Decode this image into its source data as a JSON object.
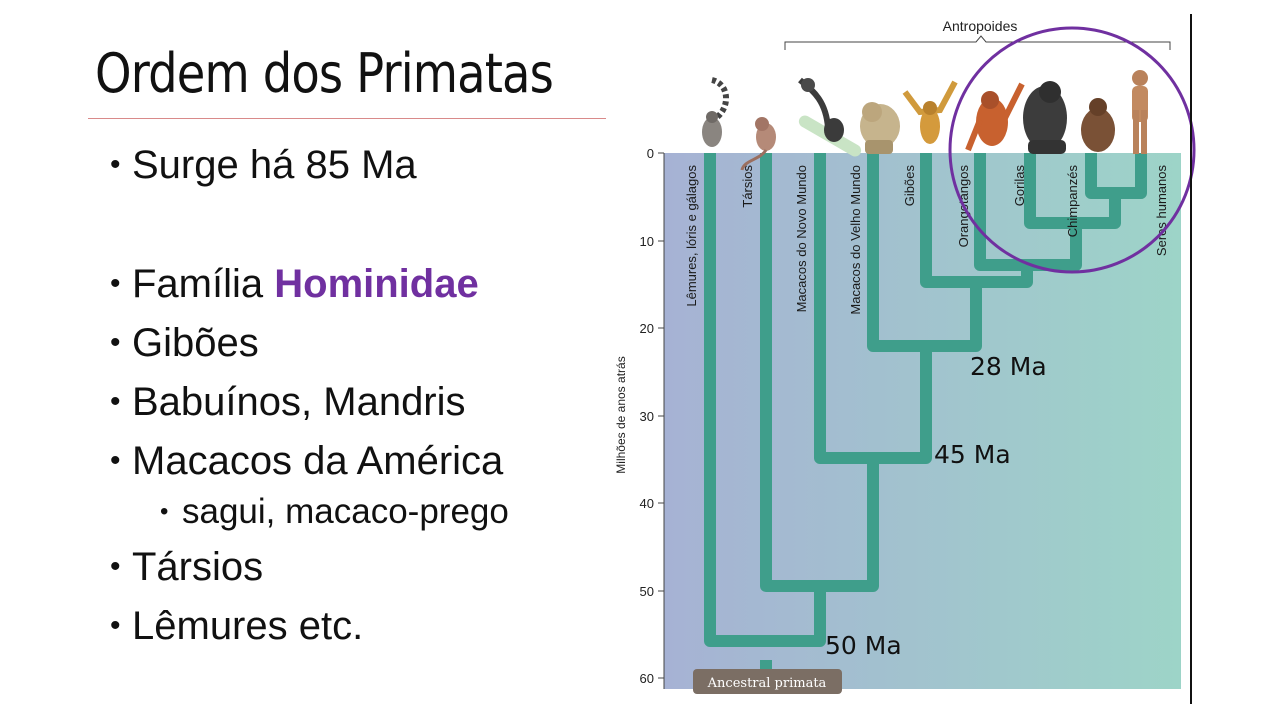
{
  "slide": {
    "title": "Ordem dos Primatas",
    "bullets": [
      {
        "text": "Surge há 85 Ma"
      },
      {
        "text": "Família ",
        "highlight": "Hominidae"
      },
      {
        "text": "Gibões"
      },
      {
        "text": "Babuínos, Mandris"
      },
      {
        "text": "Macacos da América"
      },
      {
        "text": "sagui, macaco-prego",
        "sub": true
      },
      {
        "text": "Társios"
      },
      {
        "text": "Lêmures etc."
      }
    ]
  },
  "diagram": {
    "group_label": "Antropoides",
    "axis_label": "Milhões de anos atrás",
    "axis_ticks": [
      "0",
      "10",
      "20",
      "30",
      "40",
      "50",
      "60"
    ],
    "taxa": [
      "Lêmures, lóris e gálagos",
      "Társios",
      "Macacos do Novo Mundo",
      "Macacos do Velho Mundo",
      "Gibões",
      "Orangotangos",
      "Gorilas",
      "Chimpanzés",
      "Seres humanos"
    ],
    "annotations": [
      "50 Ma",
      "45 Ma",
      "28 Ma"
    ],
    "root_label": "Ancestral primata",
    "colors": {
      "branch": "#3f9e8b",
      "highlight": "#7030a0",
      "bg_left": "#a6b2d4",
      "bg_right": "#9dd4c8"
    }
  }
}
